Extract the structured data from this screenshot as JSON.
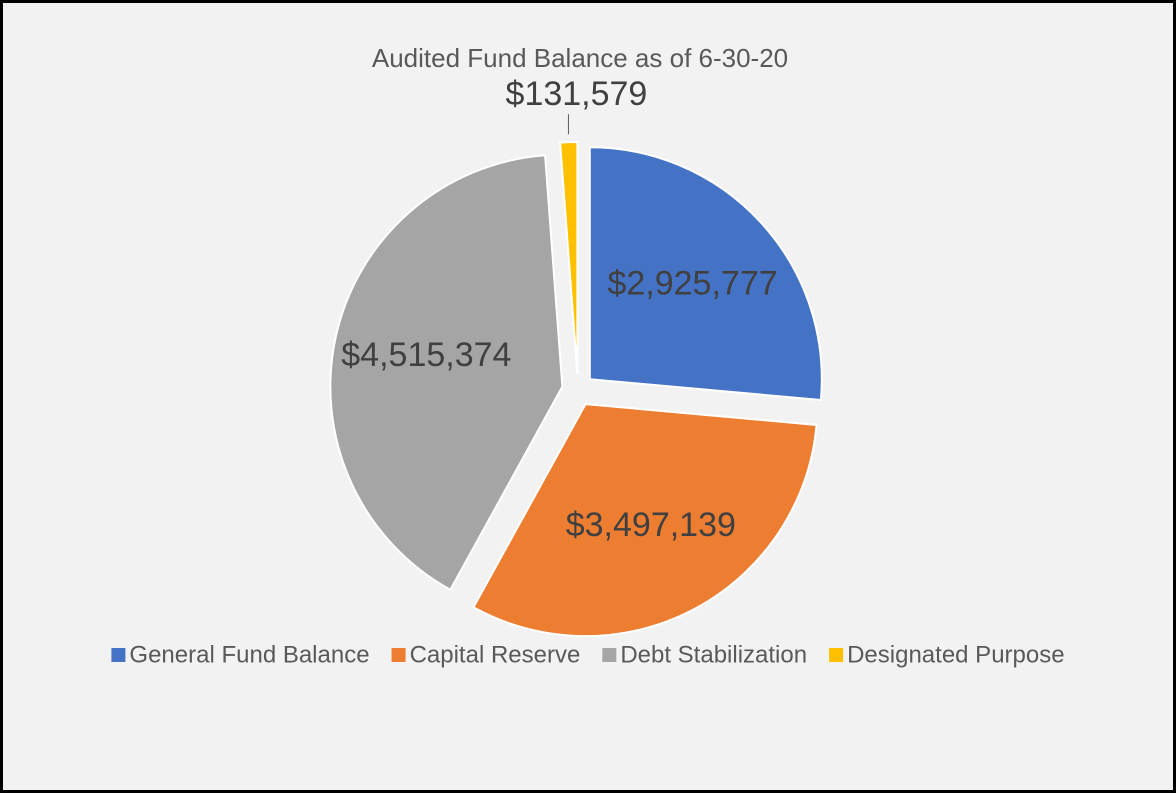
{
  "chart_data": {
    "type": "pie",
    "title": "Audited Fund Balance as of 6-30-20",
    "categories": [
      "General Fund Balance",
      "Capital Reserve",
      "Debt Stabilization",
      "Designated Purpose"
    ],
    "values": [
      2925777,
      3497139,
      4515374,
      131579
    ],
    "value_labels": [
      "$2,925,777",
      "$3,497,139",
      "$4,515,374",
      "$131,579"
    ],
    "colors": [
      "#4472c4",
      "#ed7d31",
      "#a5a5a5",
      "#ffc000"
    ],
    "legend": "bottom"
  }
}
